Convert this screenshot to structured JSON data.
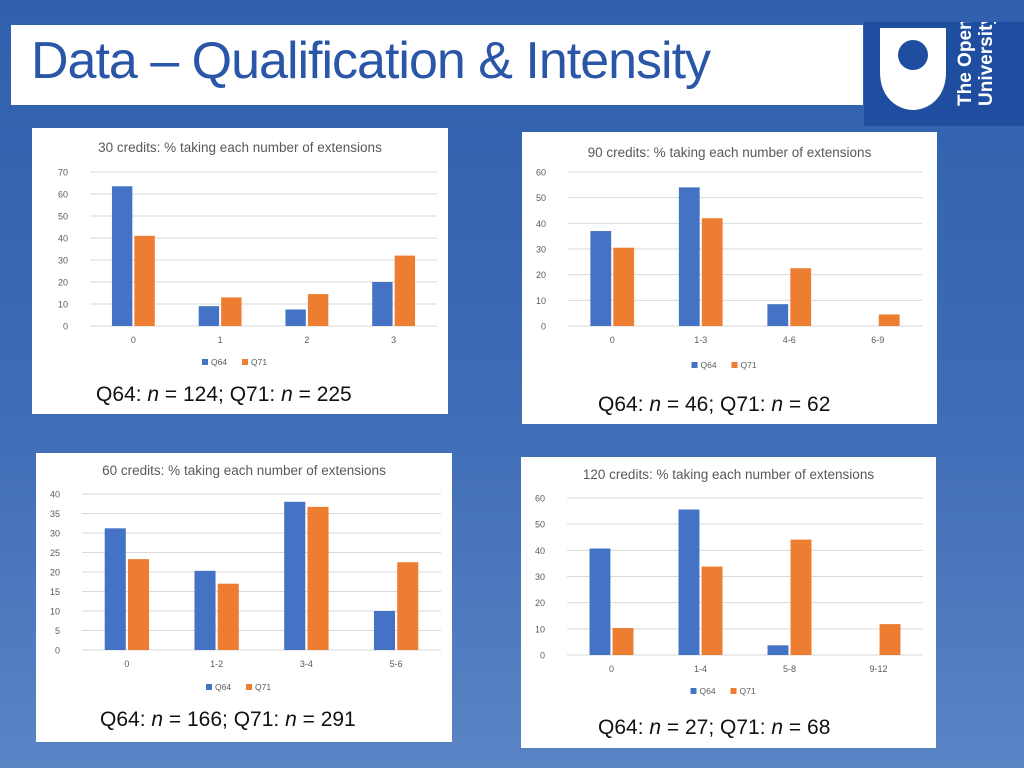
{
  "slide_title": "Data – Qualification & Intensity",
  "logo": {
    "line1": "The Open",
    "line2": "University",
    "icon": "open-university-shield-logo"
  },
  "colors": {
    "q64": "#4472c4",
    "q71": "#ed7d31",
    "grid": "#d9d9d9",
    "text": "#595959"
  },
  "charts": [
    {
      "caption": {
        "a": "Q64: ",
        "n1": "n",
        "b": " = 124;   Q71: ",
        "n2": "n",
        "c": " = 225"
      },
      "chart_data": {
        "type": "bar",
        "title": "30 credits: % taking each number of extensions",
        "categories": [
          "0",
          "1",
          "2",
          "3"
        ],
        "series": [
          {
            "name": "Q64",
            "values": [
              63.5,
              9,
              7.5,
              20
            ]
          },
          {
            "name": "Q71",
            "values": [
              41,
              13,
              14.5,
              32
            ]
          }
        ],
        "yticks": [
          0,
          10,
          20,
          30,
          40,
          50,
          60,
          70
        ],
        "ylim": [
          0,
          70
        ],
        "legend": "bottom",
        "grid": true
      }
    },
    {
      "caption": {
        "a": "Q64: ",
        "n1": "n",
        "b": " = 46;   Q71: ",
        "n2": "n",
        "c": " = 62"
      },
      "chart_data": {
        "type": "bar",
        "title": "90 credits: % taking each number of extensions",
        "categories": [
          "0",
          "1-3",
          "4-6",
          "6-9"
        ],
        "series": [
          {
            "name": "Q64",
            "values": [
              37,
              54,
              8.5,
              0
            ]
          },
          {
            "name": "Q71",
            "values": [
              30.5,
              42,
              22.5,
              4.5
            ]
          }
        ],
        "yticks": [
          0,
          10,
          20,
          30,
          40,
          50,
          60
        ],
        "ylim": [
          0,
          60
        ],
        "legend": "bottom",
        "grid": true
      }
    },
    {
      "caption": {
        "a": "Q64: ",
        "n1": "n",
        "b": " = 166;   Q71: ",
        "n2": "n",
        "c": " = 291"
      },
      "chart_data": {
        "type": "bar",
        "title": "60 credits: % taking each number of extensions",
        "categories": [
          "0",
          "1-2",
          "3-4",
          "5-6"
        ],
        "series": [
          {
            "name": "Q64",
            "values": [
              31.2,
              20.3,
              38,
              10
            ]
          },
          {
            "name": "Q71",
            "values": [
              23.3,
              17,
              36.7,
              22.5
            ]
          }
        ],
        "yticks": [
          0,
          5,
          10,
          15,
          20,
          25,
          30,
          35,
          40
        ],
        "ylim": [
          0,
          40
        ],
        "legend": "bottom",
        "grid": true
      }
    },
    {
      "caption": {
        "a": "Q64: ",
        "n1": "n",
        "b": " = 27;   Q71: ",
        "n2": "n",
        "c": " = 68"
      },
      "chart_data": {
        "type": "bar",
        "title": "120 credits: % taking each number of extensions",
        "categories": [
          "0",
          "1-4",
          "5-8",
          "9-12"
        ],
        "series": [
          {
            "name": "Q64",
            "values": [
              40.7,
              55.6,
              3.7,
              0
            ]
          },
          {
            "name": "Q71",
            "values": [
              10.3,
              33.8,
              44.1,
              11.8
            ]
          }
        ],
        "yticks": [
          0,
          10,
          20,
          30,
          40,
          50,
          60
        ],
        "ylim": [
          0,
          60
        ],
        "legend": "bottom",
        "grid": true
      }
    }
  ]
}
